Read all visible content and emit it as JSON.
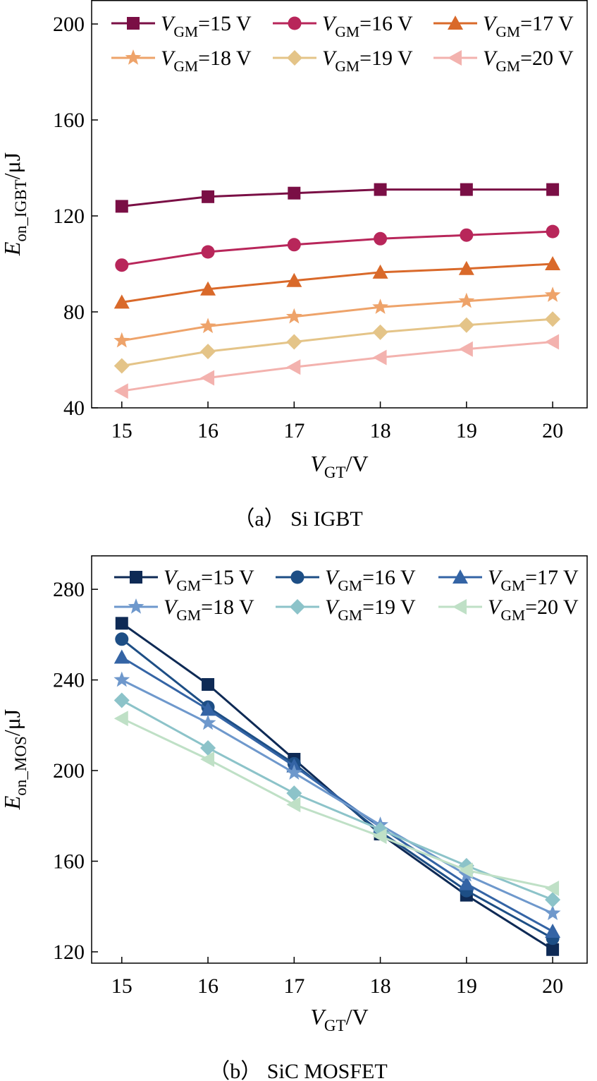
{
  "chart_data": [
    {
      "type": "line",
      "caption": "（a） Si IGBT",
      "xlabel": {
        "main": "V",
        "sub": "GT",
        "tail": "/V"
      },
      "ylabel": {
        "main": "E",
        "sub": "on_IGBT",
        "tail": "/μJ"
      },
      "xlim": [
        14.65,
        20.4
      ],
      "ylim": [
        40,
        210
      ],
      "xticks": [
        15,
        16,
        17,
        18,
        19,
        20
      ],
      "yticks": [
        40,
        80,
        120,
        160,
        200
      ],
      "x": [
        15,
        16,
        17,
        18,
        19,
        20
      ],
      "legend_position": "top",
      "series": [
        {
          "name": "15 V",
          "label_main": "V",
          "label_sub": "GM",
          "label_tail": "=15 V",
          "marker": "square",
          "color": "#7a0f45",
          "values": [
            124,
            128,
            129.5,
            131,
            131,
            131
          ]
        },
        {
          "name": "16 V",
          "label_main": "V",
          "label_sub": "GM",
          "label_tail": "=16 V",
          "marker": "circle",
          "color": "#b8265a",
          "values": [
            99.5,
            105,
            108,
            110.5,
            112,
            113.5
          ]
        },
        {
          "name": "17 V",
          "label_main": "V",
          "label_sub": "GM",
          "label_tail": "=17 V",
          "marker": "triangle",
          "color": "#d9692a",
          "values": [
            84,
            89.5,
            93,
            96.5,
            98,
            100
          ]
        },
        {
          "name": "18 V",
          "label_main": "V",
          "label_sub": "GM",
          "label_tail": "=18 V",
          "marker": "star",
          "color": "#eea36a",
          "values": [
            68,
            74,
            78,
            82,
            84.5,
            87
          ]
        },
        {
          "name": "19 V",
          "label_main": "V",
          "label_sub": "GM",
          "label_tail": "=19 V",
          "marker": "diamond",
          "color": "#e4c488",
          "values": [
            57.5,
            63.5,
            67.5,
            71.5,
            74.5,
            77
          ]
        },
        {
          "name": "20 V",
          "label_main": "V",
          "label_sub": "GM",
          "label_tail": "=20 V",
          "marker": "tri-left",
          "color": "#f3b2ae",
          "values": [
            47,
            52.5,
            57,
            61,
            64.5,
            67.5
          ]
        }
      ]
    },
    {
      "type": "line",
      "caption": "（b） SiC MOSFET",
      "xlabel": {
        "main": "V",
        "sub": "GT",
        "tail": "/V"
      },
      "ylabel": {
        "main": "E",
        "sub": "on_MOS",
        "tail": "/μJ"
      },
      "xlim": [
        14.65,
        20.4
      ],
      "ylim": [
        115,
        295
      ],
      "xticks": [
        15,
        16,
        17,
        18,
        19,
        20
      ],
      "yticks": [
        120,
        160,
        200,
        240,
        280
      ],
      "x": [
        15,
        16,
        17,
        18,
        19,
        20
      ],
      "legend_position": "top",
      "series": [
        {
          "name": "15 V",
          "label_main": "V",
          "label_sub": "GM",
          "label_tail": "=15 V",
          "marker": "square",
          "color": "#0e2a55",
          "values": [
            265,
            238,
            205,
            172,
            145,
            121
          ]
        },
        {
          "name": "16 V",
          "label_main": "V",
          "label_sub": "GM",
          "label_tail": "=16 V",
          "marker": "circle",
          "color": "#1d4e85",
          "values": [
            258,
            228,
            203,
            173,
            147,
            126
          ]
        },
        {
          "name": "17 V",
          "label_main": "V",
          "label_sub": "GM",
          "label_tail": "=17 V",
          "marker": "triangle",
          "color": "#3464a5",
          "values": [
            250,
            227,
            202,
            175,
            150,
            129
          ]
        },
        {
          "name": "18 V",
          "label_main": "V",
          "label_sub": "GM",
          "label_tail": "=18 V",
          "marker": "star",
          "color": "#6e98cc",
          "values": [
            240,
            221,
            199,
            176,
            154,
            137
          ]
        },
        {
          "name": "19 V",
          "label_main": "V",
          "label_sub": "GM",
          "label_tail": "=19 V",
          "marker": "diamond",
          "color": "#8cc3c9",
          "values": [
            231,
            210,
            190,
            174,
            158,
            143
          ]
        },
        {
          "name": "20 V",
          "label_main": "V",
          "label_sub": "GM",
          "label_tail": "=20 V",
          "marker": "tri-left",
          "color": "#bfe0c6",
          "values": [
            223,
            205,
            185,
            171,
            156,
            148
          ]
        }
      ]
    }
  ]
}
